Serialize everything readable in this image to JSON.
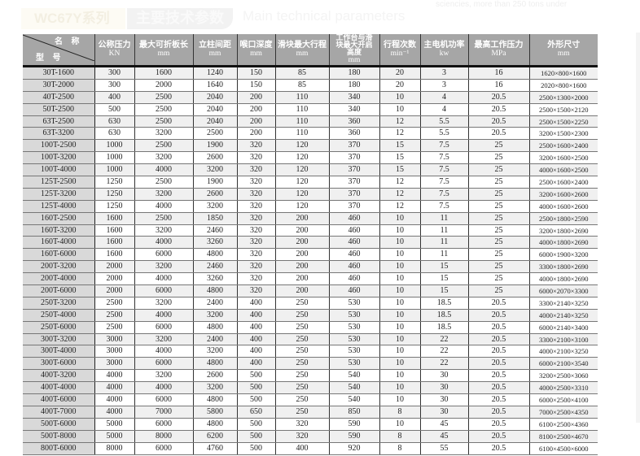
{
  "title": {
    "series": "WC67Y系列",
    "main": "主要技术参数",
    "english": "Main technical parameters",
    "top_note": "sciencies, more than 250 tons under"
  },
  "table": {
    "corner": {
      "name": "名 称",
      "type": "型 号"
    },
    "headers": [
      {
        "label": "公称压力",
        "unit": "KN"
      },
      {
        "label": "最大可折板长",
        "unit": "mm"
      },
      {
        "label": "立柱间距",
        "unit": "mm"
      },
      {
        "label": "喉口深度",
        "unit": "mm"
      },
      {
        "label": "滑块最大行程",
        "unit": "mm"
      },
      {
        "label": "工作台与滑块最大开启高度",
        "unit": "mm"
      },
      {
        "label": "行程次数",
        "unit": "min⁻¹"
      },
      {
        "label": "主电机功率",
        "unit": "kw"
      },
      {
        "label": "最高工作压力",
        "unit": "MPa"
      },
      {
        "label": "外形尺寸",
        "unit": "mm"
      }
    ],
    "rows": [
      [
        "30T-1600",
        "300",
        "1600",
        "1240",
        "150",
        "85",
        "180",
        "20",
        "3",
        "16",
        "1620×800×1600"
      ],
      [
        "30T-2000",
        "300",
        "2000",
        "1640",
        "150",
        "85",
        "180",
        "20",
        "3",
        "16",
        "2020×800×1600"
      ],
      [
        "40T-2500",
        "400",
        "2500",
        "2040",
        "200",
        "110",
        "340",
        "10",
        "4",
        "20.5",
        "2500×1300×2000"
      ],
      [
        "50T-2500",
        "500",
        "2500",
        "2040",
        "200",
        "110",
        "340",
        "10",
        "4",
        "20.5",
        "2500×1500×2120"
      ],
      [
        "63T-2500",
        "630",
        "2500",
        "2040",
        "200",
        "110",
        "360",
        "12",
        "5.5",
        "20.5",
        "2500×1500×2250"
      ],
      [
        "63T-3200",
        "630",
        "3200",
        "2500",
        "200",
        "110",
        "360",
        "12",
        "5.5",
        "20.5",
        "3200×1500×2300"
      ],
      [
        "100T-2500",
        "1000",
        "2500",
        "1900",
        "320",
        "120",
        "370",
        "15",
        "7.5",
        "25",
        "2500×1600×2400"
      ],
      [
        "100T-3200",
        "1000",
        "3200",
        "2600",
        "320",
        "120",
        "370",
        "15",
        "7.5",
        "25",
        "3200×1600×2500"
      ],
      [
        "100T-4000",
        "1000",
        "4000",
        "3200",
        "320",
        "120",
        "370",
        "15",
        "7.5",
        "25",
        "4000×1600×2500"
      ],
      [
        "125T-2500",
        "1250",
        "2500",
        "1900",
        "320",
        "120",
        "370",
        "12",
        "7.5",
        "25",
        "2500×1600×2400"
      ],
      [
        "125T-3200",
        "1250",
        "3200",
        "2600",
        "320",
        "120",
        "370",
        "12",
        "7.5",
        "25",
        "3200×1600×2600"
      ],
      [
        "125T-4000",
        "1250",
        "4000",
        "3200",
        "320",
        "120",
        "370",
        "12",
        "7.5",
        "25",
        "4000×1600×2600"
      ],
      [
        "160T-2500",
        "1600",
        "2500",
        "1850",
        "320",
        "200",
        "460",
        "10",
        "11",
        "25",
        "2500×1800×2590"
      ],
      [
        "160T-3200",
        "1600",
        "3200",
        "2460",
        "320",
        "200",
        "460",
        "10",
        "11",
        "25",
        "3200×1800×2690"
      ],
      [
        "160T-4000",
        "1600",
        "4000",
        "3260",
        "320",
        "200",
        "460",
        "10",
        "11",
        "25",
        "4000×1800×2690"
      ],
      [
        "160T-6000",
        "1600",
        "6000",
        "4800",
        "320",
        "200",
        "460",
        "10",
        "11",
        "25",
        "6000×1900×3200"
      ],
      [
        "200T-3200",
        "2000",
        "3200",
        "2460",
        "320",
        "200",
        "460",
        "10",
        "15",
        "25",
        "3300×1800×2690"
      ],
      [
        "200T-4000",
        "2000",
        "4000",
        "3260",
        "320",
        "200",
        "460",
        "10",
        "15",
        "25",
        "4000×1800×2690"
      ],
      [
        "200T-6000",
        "2000",
        "6000",
        "4800",
        "320",
        "200",
        "460",
        "10",
        "15",
        "25",
        "6000×2070×3300"
      ],
      [
        "250T-3200",
        "2500",
        "3200",
        "2400",
        "400",
        "250",
        "530",
        "10",
        "18.5",
        "20.5",
        "3300×2140×3250"
      ],
      [
        "250T-4000",
        "2500",
        "4000",
        "3200",
        "400",
        "250",
        "530",
        "10",
        "18.5",
        "20.5",
        "4000×2140×3250"
      ],
      [
        "250T-6000",
        "2500",
        "6000",
        "4800",
        "400",
        "250",
        "530",
        "10",
        "18.5",
        "20.5",
        "6000×2140×3400"
      ],
      [
        "300T-3200",
        "3000",
        "3200",
        "2400",
        "400",
        "250",
        "530",
        "10",
        "22",
        "20.5",
        "3300×2100×3100"
      ],
      [
        "300T-4000",
        "3000",
        "4000",
        "3200",
        "400",
        "250",
        "530",
        "10",
        "22",
        "20.5",
        "4000×2100×3250"
      ],
      [
        "300T-6000",
        "3000",
        "6000",
        "4800",
        "400",
        "250",
        "530",
        "10",
        "22",
        "20.5",
        "6000×2100×3540"
      ],
      [
        "400T-3200",
        "4000",
        "3200",
        "2600",
        "500",
        "250",
        "540",
        "10",
        "30",
        "20.5",
        "3200×2500×3060"
      ],
      [
        "400T-4000",
        "4000",
        "4000",
        "3200",
        "500",
        "250",
        "540",
        "10",
        "30",
        "20.5",
        "4000×2500×3310"
      ],
      [
        "400T-6000",
        "4000",
        "6000",
        "4800",
        "500",
        "250",
        "540",
        "10",
        "30",
        "20.5",
        "6000×2500×4100"
      ],
      [
        "400T-7000",
        "4000",
        "7000",
        "5800",
        "650",
        "250",
        "850",
        "8",
        "30",
        "20.5",
        "7000×2500×4350"
      ],
      [
        "500T-6000",
        "5000",
        "6000",
        "4800",
        "500",
        "320",
        "590",
        "10",
        "45",
        "20.5",
        "6100×2500×4360"
      ],
      [
        "500T-8000",
        "5000",
        "8000",
        "6200",
        "500",
        "320",
        "590",
        "8",
        "45",
        "20.5",
        "8100×2500×4670"
      ],
      [
        "800T-6000",
        "8000",
        "6000",
        "4760",
        "500",
        "400",
        "920",
        "8",
        "55",
        "20.5",
        "6100×4500×6000"
      ]
    ]
  }
}
